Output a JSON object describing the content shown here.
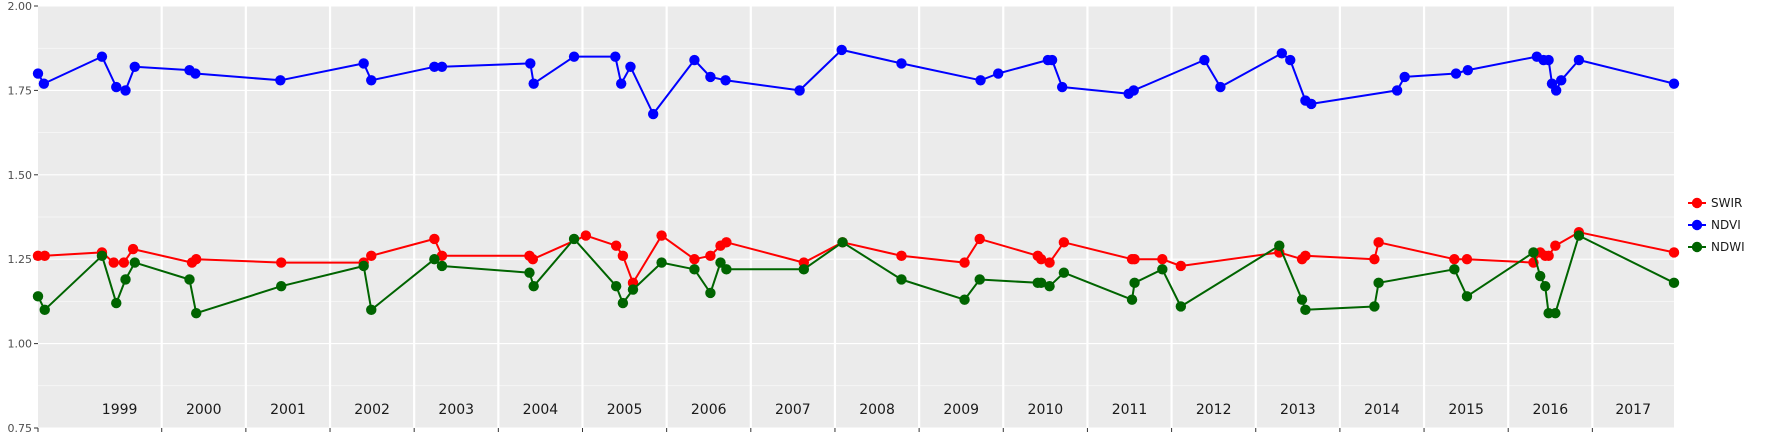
{
  "colors": {
    "panel": "#EBEBEB",
    "grid": "#FFFFFF",
    "axis_text": "#4D4D4D",
    "tick": "#333333"
  },
  "chart_data": {
    "type": "line",
    "title": "",
    "xlabel": "",
    "ylabel": "",
    "xlim": [
      1998.53,
      2017.97
    ],
    "ylim": [
      0.75,
      2.0
    ],
    "y_ticks": [
      "0.75",
      "1.00",
      "1.25",
      "1.50",
      "1.75",
      "2.00"
    ],
    "year_labels": [
      "1999",
      "2000",
      "2001",
      "2002",
      "2003",
      "2004",
      "2005",
      "2006",
      "2007",
      "2008",
      "2009",
      "2010",
      "2011",
      "2012",
      "2013",
      "2014",
      "2015",
      "2016",
      "2017"
    ],
    "grid": true,
    "legend_position": "right",
    "series": [
      {
        "name": "SWIR",
        "color": "#FF0000",
        "x": [
          1998.53,
          1998.61,
          1999.29,
          1999.43,
          1999.55,
          1999.66,
          2000.36,
          2000.41,
          2001.42,
          2002.4,
          2002.49,
          2003.24,
          2003.33,
          2004.37,
          2004.41,
          2005.04,
          2005.4,
          2005.48,
          2005.6,
          2005.94,
          2006.33,
          2006.52,
          2006.64,
          2006.71,
          2007.63,
          2008.09,
          2008.79,
          2009.54,
          2009.72,
          2010.41,
          2010.45,
          2010.55,
          2010.72,
          2011.53,
          2011.56,
          2011.89,
          2012.11,
          2013.28,
          2013.55,
          2013.59,
          2014.41,
          2014.46,
          2015.36,
          2015.51,
          2016.3,
          2016.38,
          2016.44,
          2016.48,
          2016.56,
          2016.84,
          2017.97
        ],
        "y": [
          1.26,
          1.26,
          1.27,
          1.24,
          1.24,
          1.28,
          1.24,
          1.25,
          1.24,
          1.24,
          1.26,
          1.31,
          1.26,
          1.26,
          1.25,
          1.32,
          1.29,
          1.26,
          1.18,
          1.32,
          1.25,
          1.26,
          1.29,
          1.3,
          1.24,
          1.3,
          1.26,
          1.24,
          1.31,
          1.26,
          1.25,
          1.24,
          1.3,
          1.25,
          1.25,
          1.25,
          1.23,
          1.27,
          1.25,
          1.26,
          1.25,
          1.3,
          1.25,
          1.25,
          1.24,
          1.27,
          1.26,
          1.26,
          1.29,
          1.33,
          1.27
        ]
      },
      {
        "name": "NDVI",
        "color": "#0000FF",
        "x": [
          1998.53,
          1998.6,
          1999.29,
          1999.46,
          1999.57,
          1999.68,
          2000.33,
          2000.4,
          2001.41,
          2002.4,
          2002.49,
          2003.24,
          2003.33,
          2004.38,
          2004.42,
          2004.9,
          2005.39,
          2005.46,
          2005.57,
          2005.84,
          2006.33,
          2006.52,
          2006.7,
          2007.58,
          2008.08,
          2008.79,
          2009.73,
          2009.94,
          2010.53,
          2010.58,
          2010.7,
          2011.49,
          2011.55,
          2012.39,
          2012.58,
          2013.31,
          2013.41,
          2013.59,
          2013.66,
          2014.68,
          2014.77,
          2015.38,
          2015.52,
          2016.34,
          2016.42,
          2016.48,
          2016.52,
          2016.57,
          2016.63,
          2016.84,
          2017.97
        ],
        "y": [
          1.8,
          1.77,
          1.85,
          1.76,
          1.75,
          1.82,
          1.81,
          1.8,
          1.78,
          1.83,
          1.78,
          1.82,
          1.82,
          1.83,
          1.77,
          1.85,
          1.85,
          1.77,
          1.82,
          1.68,
          1.84,
          1.79,
          1.78,
          1.75,
          1.87,
          1.83,
          1.78,
          1.8,
          1.84,
          1.84,
          1.76,
          1.74,
          1.75,
          1.84,
          1.76,
          1.86,
          1.84,
          1.72,
          1.71,
          1.75,
          1.79,
          1.8,
          1.81,
          1.85,
          1.84,
          1.84,
          1.77,
          1.75,
          1.78,
          1.84,
          1.77
        ]
      },
      {
        "name": "NDWI",
        "color": "#006400",
        "x": [
          1998.53,
          1998.61,
          1999.29,
          1999.46,
          1999.57,
          1999.68,
          2000.33,
          2000.41,
          2001.42,
          2002.4,
          2002.49,
          2003.24,
          2003.33,
          2004.37,
          2004.42,
          2004.9,
          2005.4,
          2005.48,
          2005.6,
          2005.94,
          2006.33,
          2006.52,
          2006.64,
          2006.71,
          2007.63,
          2008.09,
          2008.79,
          2009.54,
          2009.72,
          2010.41,
          2010.45,
          2010.55,
          2010.72,
          2011.53,
          2011.56,
          2011.89,
          2012.11,
          2013.28,
          2013.55,
          2013.59,
          2014.41,
          2014.46,
          2015.36,
          2015.51,
          2016.3,
          2016.38,
          2016.44,
          2016.48,
          2016.56,
          2016.84,
          2017.97
        ],
        "y": [
          1.14,
          1.1,
          1.26,
          1.12,
          1.19,
          1.24,
          1.19,
          1.09,
          1.17,
          1.23,
          1.1,
          1.25,
          1.23,
          1.21,
          1.17,
          1.31,
          1.17,
          1.12,
          1.16,
          1.24,
          1.22,
          1.15,
          1.24,
          1.22,
          1.22,
          1.3,
          1.19,
          1.13,
          1.19,
          1.18,
          1.18,
          1.17,
          1.21,
          1.13,
          1.18,
          1.22,
          1.11,
          1.29,
          1.13,
          1.1,
          1.11,
          1.18,
          1.22,
          1.14,
          1.27,
          1.2,
          1.17,
          1.09,
          1.09,
          1.32,
          1.18
        ]
      }
    ]
  }
}
